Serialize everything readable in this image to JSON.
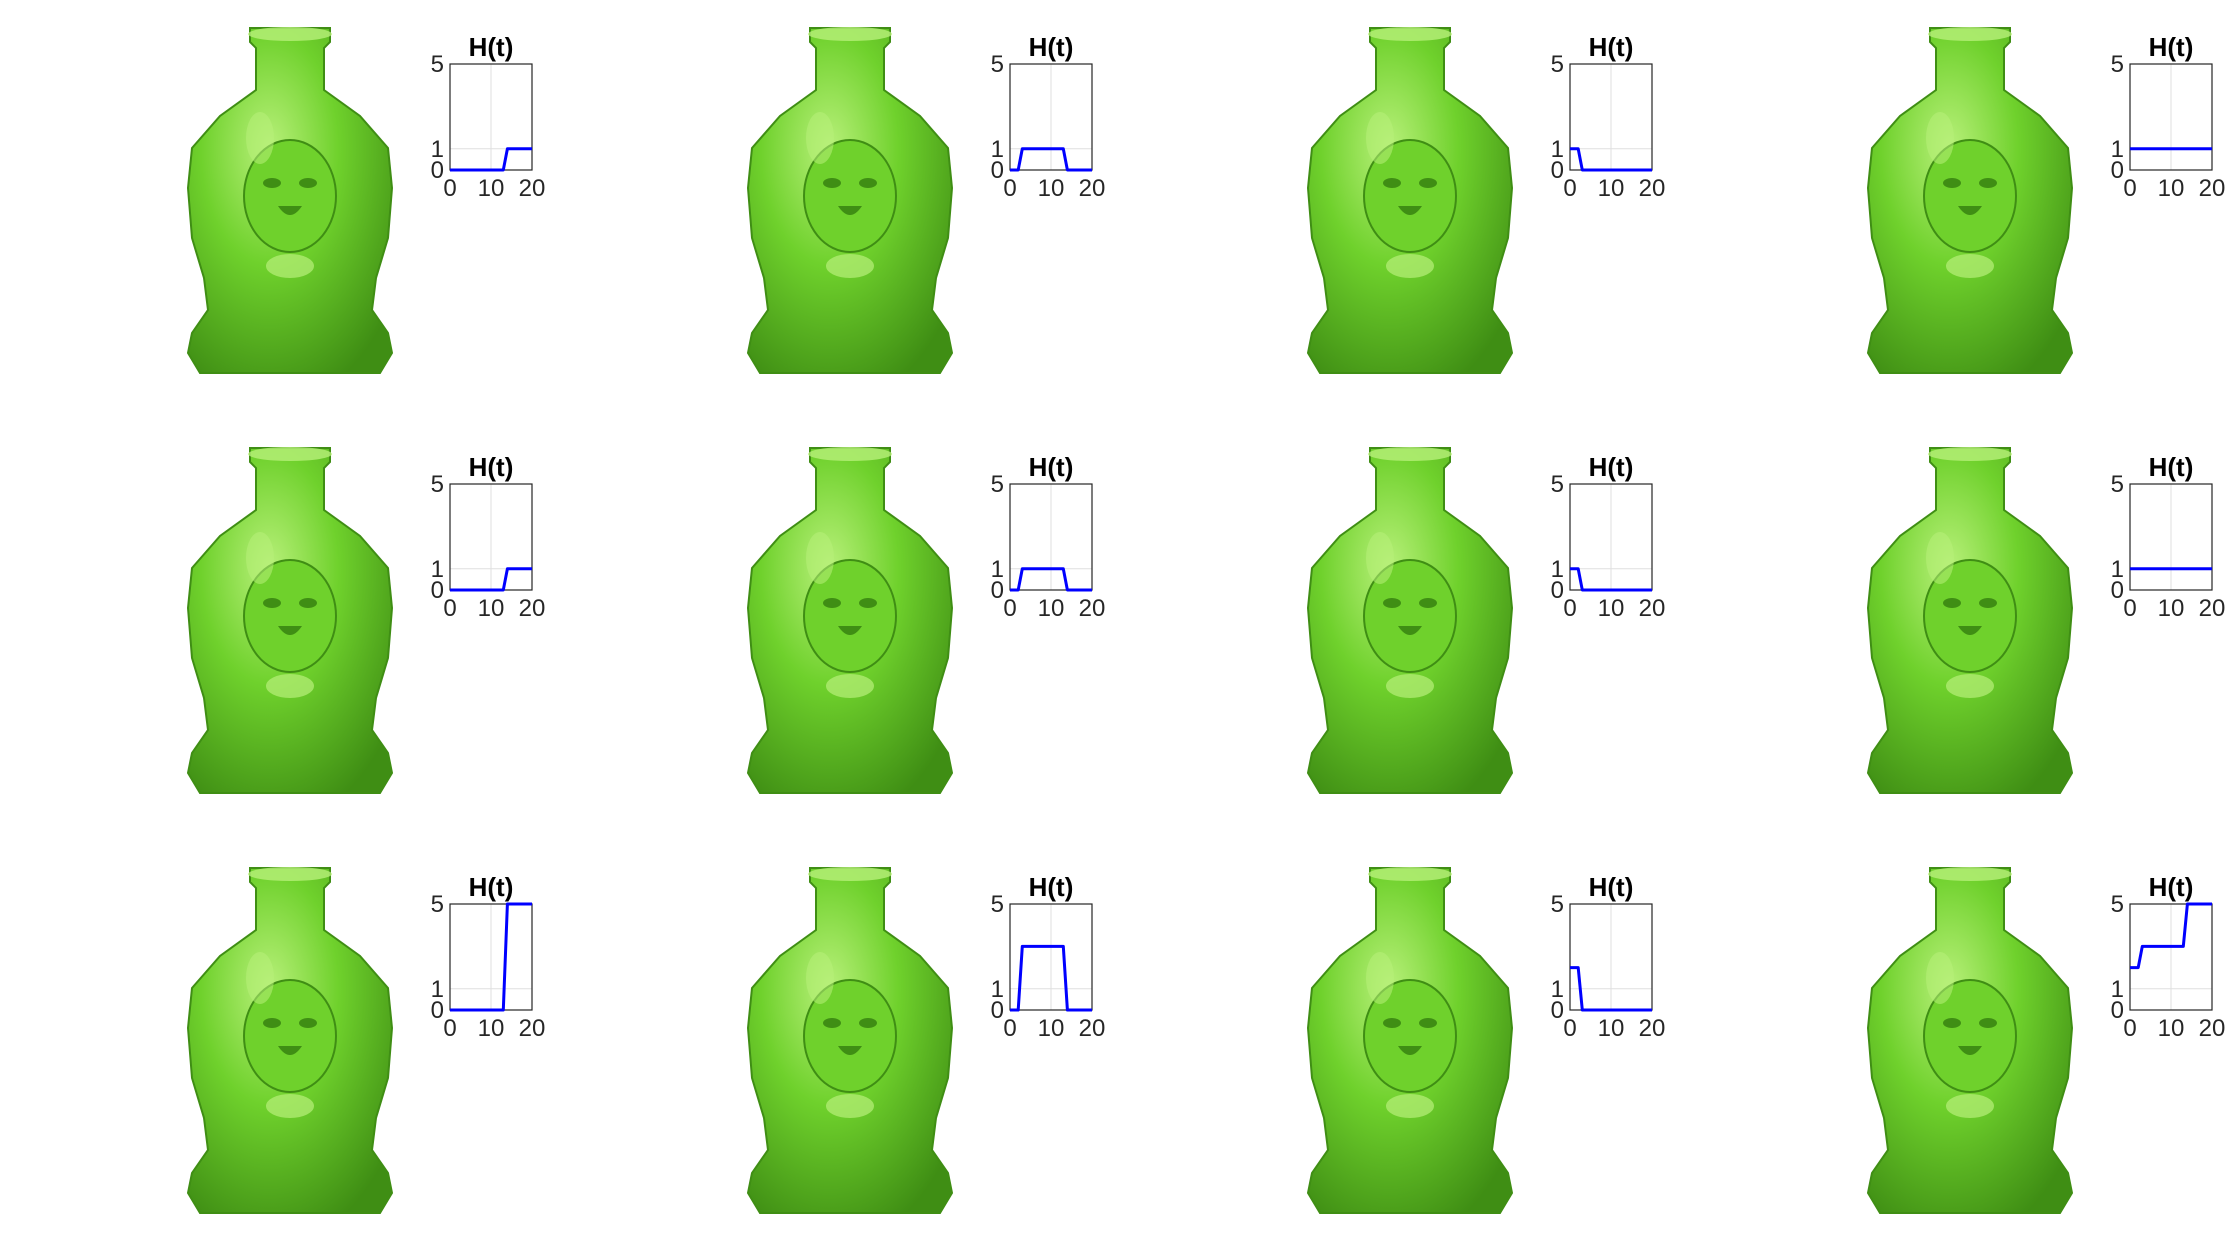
{
  "figure": {
    "plot_title": "H(t)",
    "rows": 3,
    "cols": 4
  },
  "colors": {
    "vase": "#6fd12c",
    "vase_dark": "#3f8e14",
    "vase_light": "#b8f07a",
    "line": "#0000ff",
    "axis": "#262626",
    "grid": "#dfdfdf"
  },
  "chart_data": [
    {
      "type": "line",
      "title": "H(t)",
      "x": [
        0,
        13,
        14,
        20
      ],
      "y": [
        0,
        0,
        1,
        1
      ],
      "xlim": [
        0,
        20
      ],
      "ylim": [
        0,
        5
      ],
      "xticks": [
        0,
        10,
        20
      ],
      "yticks": [
        0,
        1,
        5
      ],
      "grid": true
    },
    {
      "type": "line",
      "title": "H(t)",
      "x": [
        0,
        2,
        3,
        13,
        14,
        20
      ],
      "y": [
        0,
        0,
        1,
        1,
        0,
        0
      ],
      "xlim": [
        0,
        20
      ],
      "ylim": [
        0,
        5
      ],
      "xticks": [
        0,
        10,
        20
      ],
      "yticks": [
        0,
        1,
        5
      ],
      "grid": true
    },
    {
      "type": "line",
      "title": "H(t)",
      "x": [
        0,
        2,
        3,
        20
      ],
      "y": [
        1,
        1,
        0,
        0
      ],
      "xlim": [
        0,
        20
      ],
      "ylim": [
        0,
        5
      ],
      "xticks": [
        0,
        10,
        20
      ],
      "yticks": [
        0,
        1,
        5
      ],
      "grid": true
    },
    {
      "type": "line",
      "title": "H(t)",
      "x": [
        0,
        20
      ],
      "y": [
        1,
        1
      ],
      "xlim": [
        0,
        20
      ],
      "ylim": [
        0,
        5
      ],
      "xticks": [
        0,
        10,
        20
      ],
      "yticks": [
        0,
        1,
        5
      ],
      "grid": true
    },
    {
      "type": "line",
      "title": "H(t)",
      "x": [
        0,
        13,
        14,
        20
      ],
      "y": [
        0,
        0,
        1,
        1
      ],
      "xlim": [
        0,
        20
      ],
      "ylim": [
        0,
        5
      ],
      "xticks": [
        0,
        10,
        20
      ],
      "yticks": [
        0,
        1,
        5
      ],
      "grid": true
    },
    {
      "type": "line",
      "title": "H(t)",
      "x": [
        0,
        2,
        3,
        13,
        14,
        20
      ],
      "y": [
        0,
        0,
        1,
        1,
        0,
        0
      ],
      "xlim": [
        0,
        20
      ],
      "ylim": [
        0,
        5
      ],
      "xticks": [
        0,
        10,
        20
      ],
      "yticks": [
        0,
        1,
        5
      ],
      "grid": true
    },
    {
      "type": "line",
      "title": "H(t)",
      "x": [
        0,
        2,
        3,
        20
      ],
      "y": [
        1,
        1,
        0,
        0
      ],
      "xlim": [
        0,
        20
      ],
      "ylim": [
        0,
        5
      ],
      "xticks": [
        0,
        10,
        20
      ],
      "yticks": [
        0,
        1,
        5
      ],
      "grid": true
    },
    {
      "type": "line",
      "title": "H(t)",
      "x": [
        0,
        20
      ],
      "y": [
        1,
        1
      ],
      "xlim": [
        0,
        20
      ],
      "ylim": [
        0,
        5
      ],
      "xticks": [
        0,
        10,
        20
      ],
      "yticks": [
        0,
        1,
        5
      ],
      "grid": true
    },
    {
      "type": "line",
      "title": "H(t)",
      "x": [
        0,
        13,
        14,
        20
      ],
      "y": [
        0,
        0,
        5,
        5
      ],
      "xlim": [
        0,
        20
      ],
      "ylim": [
        0,
        5
      ],
      "xticks": [
        0,
        10,
        20
      ],
      "yticks": [
        0,
        1,
        5
      ],
      "grid": true
    },
    {
      "type": "line",
      "title": "H(t)",
      "x": [
        0,
        2,
        3,
        13,
        14,
        20
      ],
      "y": [
        0,
        0,
        3,
        3,
        0,
        0
      ],
      "xlim": [
        0,
        20
      ],
      "ylim": [
        0,
        5
      ],
      "xticks": [
        0,
        10,
        20
      ],
      "yticks": [
        0,
        1,
        5
      ],
      "grid": true
    },
    {
      "type": "line",
      "title": "H(t)",
      "x": [
        0,
        2,
        3,
        20
      ],
      "y": [
        2,
        2,
        0,
        0
      ],
      "xlim": [
        0,
        20
      ],
      "ylim": [
        0,
        5
      ],
      "xticks": [
        0,
        10,
        20
      ],
      "yticks": [
        0,
        1,
        5
      ],
      "grid": true
    },
    {
      "type": "line",
      "title": "H(t)",
      "x": [
        0,
        2,
        3,
        13,
        14,
        20
      ],
      "y": [
        2,
        2,
        3,
        3,
        5,
        5
      ],
      "xlim": [
        0,
        20
      ],
      "ylim": [
        0,
        5
      ],
      "xticks": [
        0,
        10,
        20
      ],
      "yticks": [
        0,
        1,
        5
      ],
      "grid": true
    }
  ]
}
